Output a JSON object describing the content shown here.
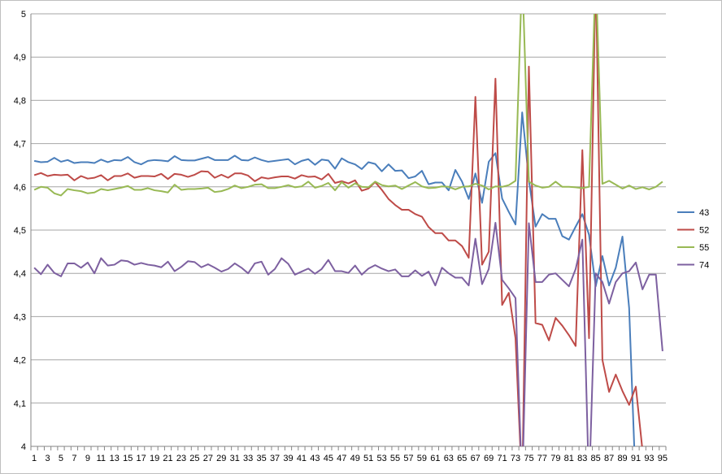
{
  "chart_data": {
    "type": "line",
    "title": "",
    "xlabel": "",
    "ylabel": "",
    "x": [
      1,
      2,
      3,
      4,
      5,
      6,
      7,
      8,
      9,
      10,
      11,
      12,
      13,
      14,
      15,
      16,
      17,
      18,
      19,
      20,
      21,
      22,
      23,
      24,
      25,
      26,
      27,
      28,
      29,
      30,
      31,
      32,
      33,
      34,
      35,
      36,
      37,
      38,
      39,
      40,
      41,
      42,
      43,
      44,
      45,
      46,
      47,
      48,
      49,
      50,
      51,
      52,
      53,
      54,
      55,
      56,
      57,
      58,
      59,
      60,
      61,
      62,
      63,
      64,
      65,
      66,
      67,
      68,
      69,
      70,
      71,
      72,
      73,
      74,
      75,
      76,
      77,
      78,
      79,
      80,
      81,
      82,
      83,
      84,
      85,
      86,
      87,
      88,
      89,
      90,
      91,
      92,
      93,
      94,
      95
    ],
    "x_tick_labels": [
      "1",
      "3",
      "5",
      "7",
      "9",
      "11",
      "13",
      "15",
      "17",
      "19",
      "21",
      "23",
      "25",
      "27",
      "29",
      "31",
      "33",
      "35",
      "37",
      "39",
      "41",
      "43",
      "45",
      "47",
      "49",
      "51",
      "53",
      "55",
      "57",
      "59",
      "61",
      "63",
      "65",
      "67",
      "69",
      "71",
      "73",
      "75",
      "77",
      "79",
      "81",
      "83",
      "85",
      "87",
      "89",
      "91",
      "93",
      "95"
    ],
    "ylim": [
      4,
      5
    ],
    "y_ticks": [
      "4",
      "4,1",
      "4,2",
      "4,3",
      "4,4",
      "4,5",
      "4,6",
      "4,7",
      "4,8",
      "4,9",
      "5"
    ],
    "grid": "horizontal",
    "legend_position": "right",
    "series": [
      {
        "name": "43",
        "color": "#4a7ebb",
        "values": [
          4.66,
          4.657,
          4.658,
          4.667,
          4.658,
          4.662,
          4.655,
          4.657,
          4.657,
          4.655,
          4.663,
          4.657,
          4.662,
          4.661,
          4.669,
          4.657,
          4.652,
          4.66,
          4.662,
          4.661,
          4.659,
          4.671,
          4.662,
          4.661,
          4.661,
          4.665,
          4.669,
          4.662,
          4.662,
          4.662,
          4.672,
          4.662,
          4.661,
          4.668,
          4.662,
          4.658,
          4.66,
          4.662,
          4.664,
          4.652,
          4.66,
          4.664,
          4.651,
          4.663,
          4.661,
          4.642,
          4.666,
          4.657,
          4.652,
          4.641,
          4.657,
          4.653,
          4.636,
          4.652,
          4.637,
          4.638,
          4.62,
          4.624,
          4.637,
          4.606,
          4.61,
          4.61,
          4.592,
          4.639,
          4.612,
          4.572,
          4.631,
          4.563,
          4.658,
          4.678,
          4.573,
          4.542,
          4.513,
          4.772,
          4.616,
          4.508,
          4.537,
          4.526,
          4.526,
          4.486,
          4.478,
          4.508,
          4.537,
          4.489,
          4.37,
          4.44,
          4.372,
          4.413,
          4.485,
          4.32,
          3.9,
          null,
          null,
          null,
          null
        ]
      },
      {
        "name": "52",
        "color": "#be4b48",
        "values": [
          4.627,
          4.632,
          4.625,
          4.628,
          4.627,
          4.628,
          4.615,
          4.625,
          4.619,
          4.621,
          4.627,
          4.615,
          4.625,
          4.625,
          4.631,
          4.621,
          4.625,
          4.625,
          4.624,
          4.63,
          4.618,
          4.63,
          4.628,
          4.623,
          4.628,
          4.636,
          4.635,
          4.621,
          4.628,
          4.621,
          4.631,
          4.631,
          4.626,
          4.613,
          4.622,
          4.619,
          4.622,
          4.624,
          4.624,
          4.619,
          4.627,
          4.623,
          4.624,
          4.617,
          4.63,
          4.609,
          4.613,
          4.608,
          4.615,
          4.591,
          4.596,
          4.611,
          4.593,
          4.572,
          4.558,
          4.547,
          4.547,
          4.537,
          4.531,
          4.507,
          4.493,
          4.493,
          4.476,
          4.476,
          4.463,
          4.436,
          4.808,
          4.42,
          4.45,
          4.85,
          4.327,
          4.355,
          4.25,
          3.9,
          4.878,
          4.285,
          4.281,
          4.245,
          4.297,
          4.279,
          4.257,
          4.232,
          4.685,
          4.25,
          5.1,
          4.2,
          4.126,
          4.166,
          4.128,
          4.096,
          4.138,
          3.99,
          null,
          null,
          null
        ]
      },
      {
        "name": "55",
        "color": "#98b954",
        "values": [
          4.593,
          4.6,
          4.598,
          4.585,
          4.58,
          4.595,
          4.592,
          4.59,
          4.585,
          4.587,
          4.595,
          4.592,
          4.595,
          4.598,
          4.602,
          4.593,
          4.593,
          4.597,
          4.592,
          4.59,
          4.587,
          4.605,
          4.593,
          4.595,
          4.595,
          4.596,
          4.598,
          4.588,
          4.59,
          4.595,
          4.603,
          4.597,
          4.6,
          4.605,
          4.606,
          4.597,
          4.597,
          4.6,
          4.604,
          4.599,
          4.601,
          4.612,
          4.598,
          4.602,
          4.609,
          4.592,
          4.611,
          4.598,
          4.608,
          4.6,
          4.599,
          4.612,
          4.604,
          4.601,
          4.603,
          4.595,
          4.603,
          4.611,
          4.601,
          4.597,
          4.598,
          4.601,
          4.6,
          4.594,
          4.6,
          4.601,
          4.607,
          4.603,
          4.594,
          4.601,
          4.6,
          4.604,
          4.614,
          5.1,
          4.612,
          4.603,
          4.598,
          4.6,
          4.612,
          4.6,
          4.6,
          4.599,
          4.597,
          4.6,
          5.1,
          4.607,
          4.614,
          4.605,
          4.596,
          4.603,
          4.595,
          4.599,
          4.594,
          4.6,
          4.612
        ]
      },
      {
        "name": "74",
        "color": "#7d60a0",
        "values": [
          4.413,
          4.398,
          4.42,
          4.401,
          4.393,
          4.423,
          4.423,
          4.413,
          4.425,
          4.4,
          4.435,
          4.418,
          4.42,
          4.43,
          4.428,
          4.42,
          4.424,
          4.42,
          4.418,
          4.414,
          4.427,
          4.405,
          4.415,
          4.428,
          4.426,
          4.414,
          4.421,
          4.413,
          4.404,
          4.41,
          4.423,
          4.413,
          4.4,
          4.423,
          4.427,
          4.397,
          4.41,
          4.435,
          4.422,
          4.397,
          4.404,
          4.411,
          4.399,
          4.41,
          4.431,
          4.405,
          4.405,
          4.401,
          4.418,
          4.397,
          4.411,
          4.419,
          4.411,
          4.405,
          4.409,
          4.393,
          4.393,
          4.407,
          4.394,
          4.404,
          4.372,
          4.413,
          4.4,
          4.39,
          4.39,
          4.372,
          4.48,
          4.375,
          4.41,
          4.517,
          4.385,
          4.365,
          4.343,
          3.9,
          4.516,
          4.38,
          4.38,
          4.397,
          4.4,
          4.385,
          4.37,
          4.41,
          4.478,
          3.9,
          4.4,
          4.38,
          4.33,
          4.38,
          4.4,
          4.405,
          4.425,
          4.363,
          4.397,
          4.397,
          4.22
        ]
      }
    ]
  }
}
